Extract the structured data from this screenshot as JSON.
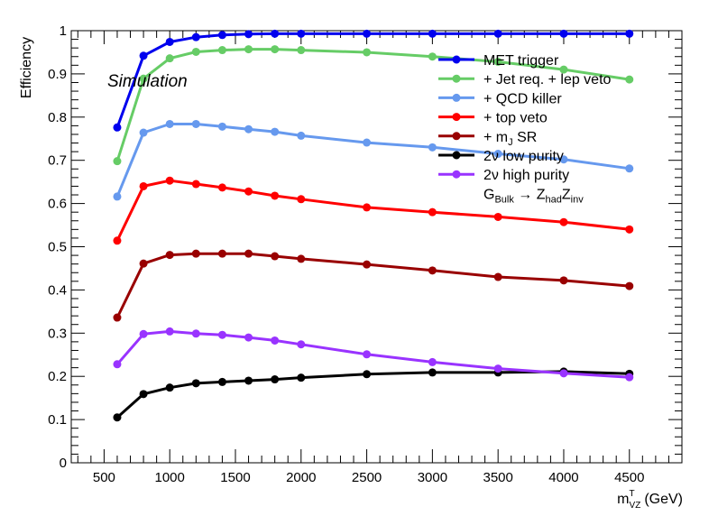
{
  "chart_data": {
    "type": "line",
    "title": "",
    "xlabel_main": "m",
    "xlabel_sup": "T",
    "xlabel_sub": "VZ",
    "xlabel_unit": "(GeV)",
    "ylabel": "Efficiency",
    "annotation": "Simulation",
    "xlim": [
      250,
      4900
    ],
    "ylim": [
      0,
      1
    ],
    "xticks": [
      500,
      1000,
      1500,
      2000,
      2500,
      3000,
      3500,
      4000,
      4500
    ],
    "yticks": [
      0,
      0.1,
      0.2,
      0.3,
      0.4,
      0.5,
      0.6,
      0.7,
      0.8,
      0.9,
      1
    ],
    "ytick_labels": [
      "0",
      "0.1",
      "0.2",
      "0.3",
      "0.4",
      "0.5",
      "0.6",
      "0.7",
      "0.8",
      "0.9",
      "1"
    ],
    "grid": false,
    "legend_position": "top-right",
    "x": [
      600,
      800,
      1000,
      1200,
      1400,
      1600,
      1800,
      2000,
      2500,
      3000,
      3500,
      4000,
      4500
    ],
    "series": [
      {
        "name": "MET trigger",
        "color": "#0000ee",
        "values": [
          0.776,
          0.942,
          0.974,
          0.985,
          0.99,
          0.992,
          0.993,
          0.993,
          0.993,
          0.993,
          0.993,
          0.993,
          0.993
        ]
      },
      {
        "name": "+ Jet req. + lep veto",
        "color": "#66cc66",
        "values": [
          0.698,
          0.889,
          0.936,
          0.951,
          0.955,
          0.957,
          0.957,
          0.955,
          0.95,
          0.94,
          0.928,
          0.91,
          0.887
        ]
      },
      {
        "name": "+ QCD killer",
        "color": "#6699ee",
        "values": [
          0.616,
          0.764,
          0.784,
          0.784,
          0.778,
          0.772,
          0.766,
          0.757,
          0.741,
          0.73,
          0.715,
          0.702,
          0.681
        ]
      },
      {
        "name": "+ top veto",
        "color": "#ff0000",
        "values": [
          0.514,
          0.64,
          0.653,
          0.645,
          0.637,
          0.628,
          0.618,
          0.61,
          0.591,
          0.58,
          0.569,
          0.557,
          0.54
        ]
      },
      {
        "name": "+ m",
        "name_sub": "J",
        "name_tail": " SR",
        "color": "#990000",
        "values": [
          0.336,
          0.461,
          0.481,
          0.484,
          0.484,
          0.484,
          0.478,
          0.472,
          0.459,
          0.445,
          0.43,
          0.422,
          0.409
        ]
      },
      {
        "name": "2ν low purity",
        "color": "#000000",
        "values": [
          0.105,
          0.159,
          0.174,
          0.184,
          0.187,
          0.19,
          0.193,
          0.197,
          0.205,
          0.209,
          0.209,
          0.211,
          0.206
        ]
      },
      {
        "name": "2ν high purity",
        "color": "#9933ff",
        "values": [
          0.228,
          0.298,
          0.304,
          0.299,
          0.296,
          0.29,
          0.283,
          0.274,
          0.251,
          0.233,
          0.218,
          0.207,
          0.198
        ]
      }
    ],
    "legend_extra": {
      "g": "G",
      "g_sub": "Bulk",
      "arrow": " → Z",
      "z1_sub": "had",
      "z2": "Z",
      "z2_sub": "inv"
    }
  }
}
